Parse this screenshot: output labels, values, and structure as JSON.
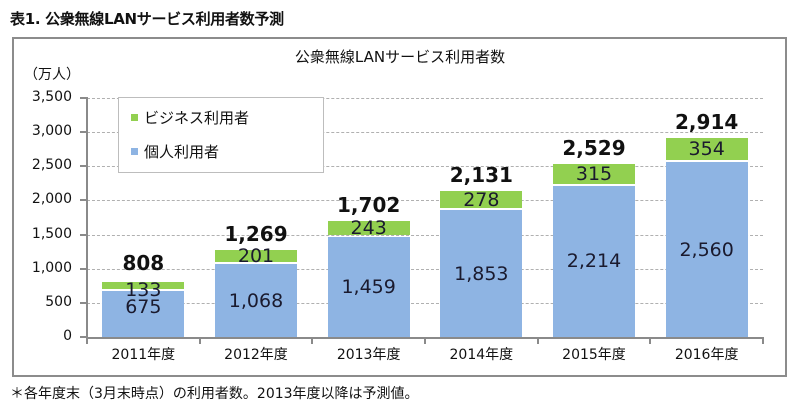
{
  "page": {
    "title": "表1. 公衆無線LANサービス利用者数予測",
    "footnote": "＊各年度末（3月末時点）の利用者数。2013年度以降は予測値。"
  },
  "colors": {
    "individual": "#8eb4e3",
    "business": "#92d050",
    "grid": "#b0b0b0",
    "axis": "#8a8a8a"
  },
  "chart_data": {
    "type": "bar",
    "stacked": true,
    "title": "公衆無線LANサービス利用者数",
    "ylabel": "（万人）",
    "xlabel": "",
    "ylim": [
      0,
      3500
    ],
    "yticks": [
      "0",
      "500",
      "1,000",
      "1,500",
      "2,000",
      "2,500",
      "3,000",
      "3,500"
    ],
    "grid": true,
    "legend_position": "upper-left (inside)",
    "categories": [
      "2011年度",
      "2012年度",
      "2013年度",
      "2014年度",
      "2015年度",
      "2016年度"
    ],
    "series": [
      {
        "name": "個人利用者",
        "color": "#8eb4e3",
        "values": [
          675,
          1068,
          1459,
          1853,
          2214,
          2560
        ],
        "labels": [
          "675",
          "1,068",
          "1,459",
          "1,853",
          "2,214",
          "2,560"
        ]
      },
      {
        "name": "ビジネス利用者",
        "color": "#92d050",
        "values": [
          133,
          201,
          243,
          278,
          315,
          354
        ],
        "labels": [
          "133",
          "201",
          "243",
          "278",
          "315",
          "354"
        ]
      }
    ],
    "totals": [
      808,
      1269,
      1702,
      2131,
      2529,
      2914
    ],
    "total_labels": [
      "808",
      "1,269",
      "1,702",
      "2,131",
      "2,529",
      "2,914"
    ],
    "annotations": [
      "2013年度以降は予測値"
    ]
  },
  "legend": {
    "items": [
      {
        "label": "ビジネス利用者",
        "color": "#92d050"
      },
      {
        "label": "個人利用者",
        "color": "#8eb4e3"
      }
    ]
  }
}
